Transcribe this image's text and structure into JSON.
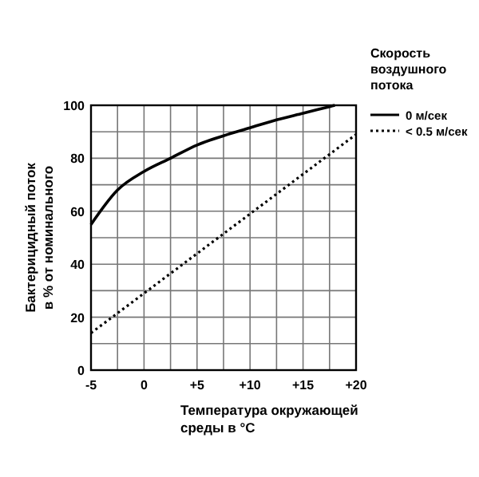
{
  "chart_data": {
    "type": "line",
    "xlabel": "Температура окружающей\nсреды в  °C",
    "ylabel": "Бактерицидный поток\nв % от номинального",
    "legend_title": "Скорость\nвоздушного\nпотока",
    "x": [
      -5,
      -2.5,
      0,
      2.5,
      5,
      7.5,
      10,
      12.5,
      15,
      17.5,
      18
    ],
    "series": [
      {
        "name": "0 м/сек",
        "color": "#000000",
        "line_style": "solid",
        "values": [
          55,
          68,
          75,
          80,
          85,
          88.5,
          91.5,
          94.5,
          97,
          99.5,
          100
        ]
      },
      {
        "name": "< 0.5 м/сек",
        "color": "#000000",
        "line_style": "dotted",
        "x": [
          -5,
          20
        ],
        "values": [
          14,
          89
        ]
      }
    ],
    "xlim": [
      -5,
      20
    ],
    "ylim": [
      0,
      100
    ],
    "xticks": [
      -5,
      {
        "value": -2.5,
        "label": null
      },
      0,
      {
        "value": 2.5,
        "label": null
      },
      {
        "value": 5,
        "label": "+5"
      },
      {
        "value": 7.5,
        "label": null
      },
      {
        "value": 10,
        "label": "+10"
      },
      {
        "value": 12.5,
        "label": null
      },
      {
        "value": 15,
        "label": "+15"
      },
      {
        "value": 17.5,
        "label": null
      },
      {
        "value": 20,
        "label": "+20"
      }
    ],
    "yticks": [
      0,
      {
        "value": 10,
        "label": null
      },
      20,
      {
        "value": 30,
        "label": null
      },
      40,
      {
        "value": 50,
        "label": null
      },
      60,
      {
        "value": 70,
        "label": null
      },
      80,
      {
        "value": 90,
        "label": null
      },
      100
    ],
    "grid": true,
    "legend": "top right"
  }
}
